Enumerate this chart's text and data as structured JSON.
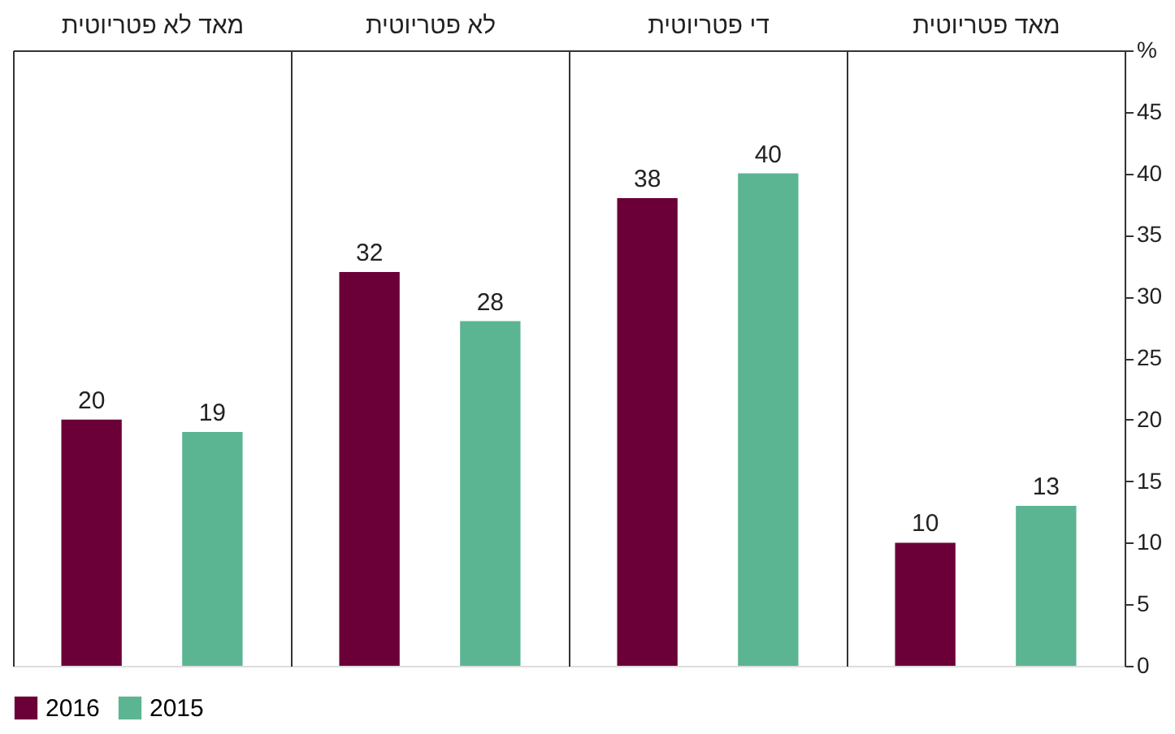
{
  "chart_data": {
    "type": "bar",
    "categories": [
      "מאד לא פטריוטית",
      "לא פטריוטית",
      "די פטריוטית",
      "מאד פטריוטית"
    ],
    "series": [
      {
        "name": "2016",
        "color": "#6b0038",
        "values": [
          20,
          32,
          38,
          10
        ]
      },
      {
        "name": "2015",
        "color": "#5bb592",
        "values": [
          19,
          28,
          40,
          13
        ]
      }
    ],
    "ylim": [
      0,
      50
    ],
    "yticks": [
      0,
      5,
      10,
      15,
      20,
      25,
      30,
      35,
      40,
      45,
      {
        "value": 50,
        "label": "%"
      }
    ],
    "data_labels": true,
    "grid": "x",
    "legend": "bottom"
  }
}
